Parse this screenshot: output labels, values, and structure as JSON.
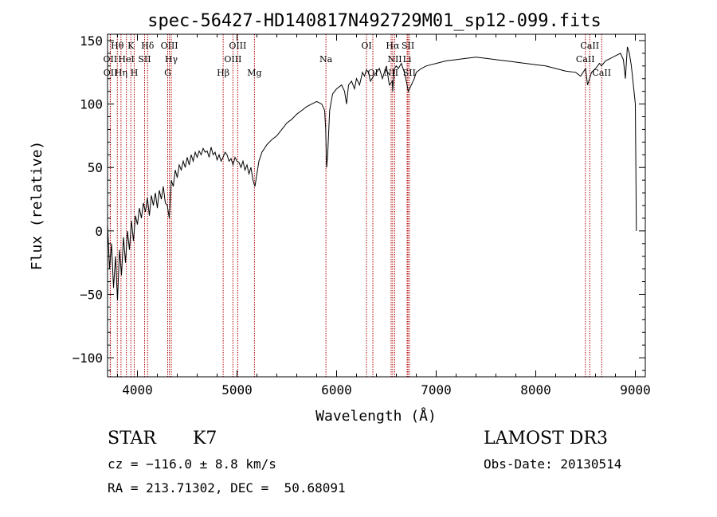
{
  "chart_data": {
    "type": "line",
    "title": "spec-56427-HD140817N492729M01_sp12-099.fits",
    "xlabel": "Wavelength (Å)",
    "ylabel": "Flux (relative)",
    "xlim": [
      3700,
      9100
    ],
    "ylim": [
      -115,
      155
    ],
    "x_ticks": [
      4000,
      5000,
      6000,
      7000,
      8000,
      9000
    ],
    "x_tick_labels": [
      "4000",
      "5000",
      "6000",
      "7000",
      "8000",
      "9000"
    ],
    "y_ticks": [
      -100,
      -50,
      0,
      50,
      100,
      150
    ],
    "y_tick_labels": [
      "−100",
      "−50",
      "0",
      "50",
      "100",
      "150"
    ],
    "grid": false,
    "series": [
      {
        "name": "flux",
        "x": [
          3700,
          3720,
          3740,
          3760,
          3780,
          3800,
          3820,
          3840,
          3860,
          3880,
          3900,
          3920,
          3940,
          3960,
          3980,
          4000,
          4020,
          4040,
          4060,
          4080,
          4100,
          4120,
          4140,
          4160,
          4180,
          4200,
          4220,
          4240,
          4260,
          4280,
          4300,
          4320,
          4340,
          4360,
          4380,
          4400,
          4420,
          4440,
          4460,
          4480,
          4500,
          4520,
          4540,
          4560,
          4580,
          4600,
          4620,
          4640,
          4660,
          4680,
          4700,
          4720,
          4740,
          4760,
          4780,
          4800,
          4820,
          4840,
          4860,
          4880,
          4900,
          4920,
          4940,
          4960,
          4980,
          5000,
          5020,
          5040,
          5060,
          5080,
          5100,
          5120,
          5140,
          5160,
          5180,
          5200,
          5220,
          5250,
          5300,
          5350,
          5400,
          5450,
          5500,
          5550,
          5600,
          5650,
          5700,
          5750,
          5800,
          5850,
          5880,
          5890,
          5900,
          5910,
          5930,
          5960,
          6000,
          6050,
          6080,
          6100,
          6120,
          6150,
          6180,
          6200,
          6230,
          6260,
          6280,
          6300,
          6320,
          6340,
          6370,
          6400,
          6430,
          6460,
          6500,
          6530,
          6560,
          6563,
          6580,
          6600,
          6620,
          6650,
          6680,
          6700,
          6720,
          6750,
          6780,
          6800,
          6850,
          6900,
          6950,
          7000,
          7100,
          7200,
          7300,
          7400,
          7500,
          7600,
          7700,
          7800,
          7900,
          8000,
          8100,
          8200,
          8300,
          8400,
          8450,
          8500,
          8520,
          8540,
          8560,
          8600,
          8640,
          8660,
          8700,
          8750,
          8800,
          8850,
          8880,
          8900,
          8920,
          8940,
          8960,
          8980,
          9000,
          9010
        ],
        "y": [
          5,
          -30,
          -10,
          -45,
          -20,
          -55,
          -15,
          -35,
          -5,
          -25,
          0,
          -15,
          8,
          -8,
          12,
          5,
          18,
          10,
          22,
          15,
          26,
          12,
          28,
          20,
          30,
          18,
          32,
          25,
          35,
          22,
          20,
          10,
          40,
          35,
          48,
          42,
          52,
          48,
          55,
          50,
          58,
          52,
          60,
          55,
          62,
          58,
          63,
          60,
          65,
          62,
          63,
          58,
          66,
          60,
          62,
          56,
          60,
          55,
          58,
          62,
          60,
          55,
          57,
          52,
          58,
          55,
          54,
          50,
          55,
          48,
          52,
          45,
          50,
          40,
          35,
          45,
          55,
          62,
          68,
          72,
          75,
          80,
          85,
          88,
          92,
          95,
          98,
          100,
          102,
          100,
          95,
          80,
          50,
          60,
          95,
          108,
          112,
          115,
          110,
          100,
          115,
          118,
          112,
          120,
          115,
          125,
          122,
          127,
          125,
          118,
          122,
          125,
          128,
          120,
          130,
          115,
          118,
          110,
          128,
          130,
          128,
          132,
          125,
          118,
          110,
          115,
          120,
          125,
          128,
          130,
          131,
          132,
          134,
          135,
          136,
          137,
          136,
          135,
          134,
          133,
          132,
          131,
          130,
          128,
          126,
          125,
          122,
          128,
          115,
          120,
          125,
          128,
          132,
          130,
          134,
          136,
          138,
          140,
          135,
          120,
          145,
          140,
          130,
          115,
          100,
          0
        ]
      }
    ],
    "lines": [
      {
        "name": "Hθ",
        "wave": 3798,
        "row": 1
      },
      {
        "name": "OII",
        "wave": 3727,
        "row": 2
      },
      {
        "name": "OII",
        "wave": 3729,
        "row": 3
      },
      {
        "name": "Hη",
        "wave": 3835,
        "row": 3
      },
      {
        "name": "HeI",
        "wave": 3889,
        "row": 2
      },
      {
        "name": "K",
        "wave": 3934,
        "row": 1
      },
      {
        "name": "H",
        "wave": 3968,
        "row": 3
      },
      {
        "name": "SII",
        "wave": 4072,
        "row": 2
      },
      {
        "name": "Hδ",
        "wave": 4102,
        "row": 1
      },
      {
        "name": "G",
        "wave": 4304,
        "row": 3
      },
      {
        "name": "OIII",
        "wave": 4321,
        "row": 1
      },
      {
        "name": "Hγ",
        "wave": 4340,
        "row": 2
      },
      {
        "name": "Hβ",
        "wave": 4861,
        "row": 3
      },
      {
        "name": "OIII",
        "wave": 4959,
        "row": 2
      },
      {
        "name": "OIII",
        "wave": 5007,
        "row": 1
      },
      {
        "name": "Mg",
        "wave": 5175,
        "row": 3
      },
      {
        "name": "Na",
        "wave": 5893,
        "row": 2
      },
      {
        "name": "OI",
        "wave": 6300,
        "row": 1
      },
      {
        "name": "OI",
        "wave": 6364,
        "row": 3
      },
      {
        "name": "NII",
        "wave": 6548,
        "row": 3
      },
      {
        "name": "NII",
        "wave": 6584,
        "row": 2
      },
      {
        "name": "Hα",
        "wave": 6563,
        "row": 1
      },
      {
        "name": "SII",
        "wave": 6717,
        "row": 1
      },
      {
        "name": "Li",
        "wave": 6708,
        "row": 2
      },
      {
        "name": "SII",
        "wave": 6731,
        "row": 3
      },
      {
        "name": "CaII",
        "wave": 8498,
        "row": 2
      },
      {
        "name": "CaII",
        "wave": 8542,
        "row": 1
      },
      {
        "name": "CaII",
        "wave": 8662,
        "row": 3
      }
    ]
  },
  "info": {
    "object_class": "STAR",
    "subclass": "K7",
    "survey": "LAMOST DR3",
    "cz": "cz = −116.0 ± 8.8 km/s",
    "obs_date": "Obs-Date: 20130514",
    "radec": "RA = 213.71302, DEC =  50.68091"
  }
}
